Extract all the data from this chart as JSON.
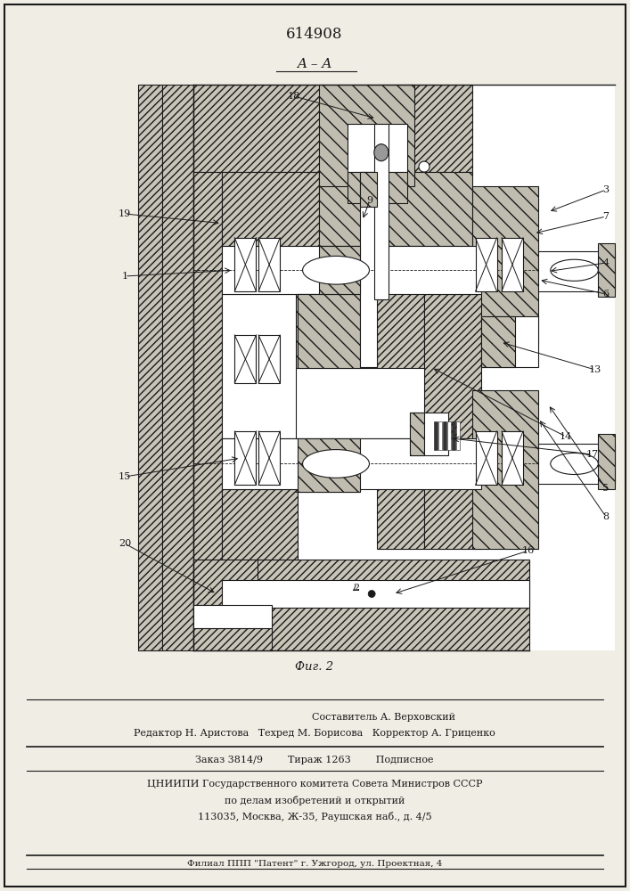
{
  "patent_number": "614908",
  "section_label": "A–A",
  "fig_label": "Фиг. 2",
  "bg_color": "#f0ede5",
  "drawing_bg": "#ffffff",
  "hatch_color": "#b8b4a8",
  "line_color": "#1a1a1a",
  "footer_lines": [
    "Составитель А. Верховский",
    "Редактор Н. Аристова   Техред М. Борисова   Корректор А. Гриценко",
    "Заказ 3814/9        Тираж 1263        Подписное",
    "ЦНИИПИ Государственного комитета Совета Министров СССР",
    "по делам изобретений и открытий",
    "113035, Москва, Ж-35, Раушская наб., д. 4/5",
    "Филиал ППП \"Патент\" г. Ужгород, ул. Проектная, 4"
  ]
}
